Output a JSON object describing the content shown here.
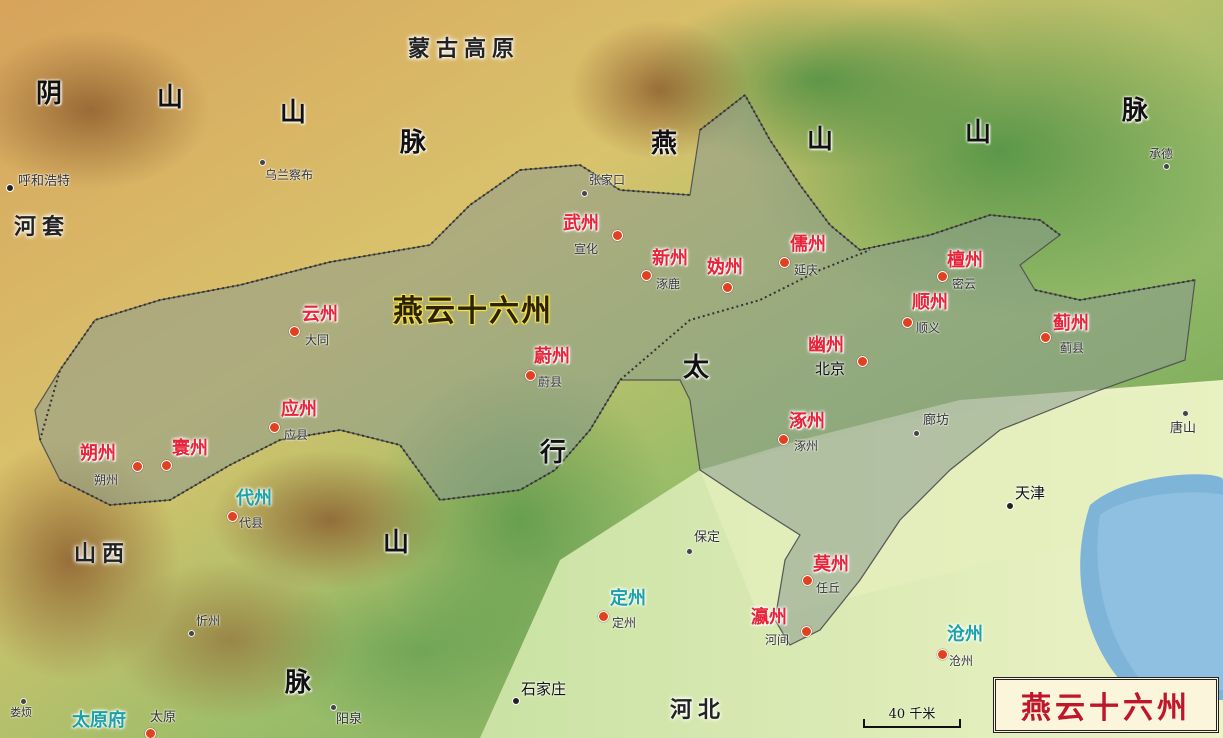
{
  "title_center": "燕云十六州",
  "legend": {
    "title": "燕云十六州"
  },
  "scale": {
    "label": "40 千米"
  },
  "colors": {
    "sixteen_prefectures_label": "#e8243a",
    "other_prefecture_label": "#1aa2a8",
    "territory_fill": "#8a9a8e",
    "great_wall": "#333333",
    "sea": "#7fb4d9"
  },
  "regions": {
    "mongolian_plateau": "蒙古高原",
    "hetao": "河套",
    "shanxi": "山西",
    "hebei": "河北"
  },
  "mountains": {
    "yinshan": [
      "阴",
      "山",
      "山",
      "脉"
    ],
    "yanshan": [
      "燕",
      "山",
      "山",
      "脉"
    ],
    "taihang": [
      "太",
      "行",
      "山",
      "脉"
    ]
  },
  "sixteen_prefectures": [
    {
      "name": "武州",
      "city": "宣化"
    },
    {
      "name": "新州",
      "city": "涿鹿"
    },
    {
      "name": "妫州",
      "city": ""
    },
    {
      "name": "儒州",
      "city": "延庆"
    },
    {
      "name": "檀州",
      "city": "密云"
    },
    {
      "name": "顺州",
      "city": "顺义"
    },
    {
      "name": "蓟州",
      "city": "蓟县"
    },
    {
      "name": "幽州",
      "city": "北京"
    },
    {
      "name": "云州",
      "city": "大同"
    },
    {
      "name": "蔚州",
      "city": "蔚县"
    },
    {
      "name": "应州",
      "city": "应县"
    },
    {
      "name": "朔州",
      "city": "朔州"
    },
    {
      "name": "寰州",
      "city": ""
    },
    {
      "name": "涿州",
      "city": "涿州"
    },
    {
      "name": "莫州",
      "city": "任丘"
    },
    {
      "name": "瀛州",
      "city": "河间"
    }
  ],
  "other_prefectures": [
    {
      "name": "代州",
      "city": "代县"
    },
    {
      "name": "定州",
      "city": "定州"
    },
    {
      "name": "沧州",
      "city": "沧州"
    },
    {
      "name": "太原府",
      "city": "太原"
    }
  ],
  "cities": {
    "hohhot": "呼和浩特",
    "ulanqab": "乌兰察布",
    "zhangjiakou": "张家口",
    "chengde": "承德",
    "langfang": "廊坊",
    "tangshan": "唐山",
    "tianjin": "天津",
    "baoding": "保定",
    "shijiazhuang": "石家庄",
    "xinzhou": "忻州",
    "loufan": "娄烦",
    "yangquan": "阳泉"
  }
}
